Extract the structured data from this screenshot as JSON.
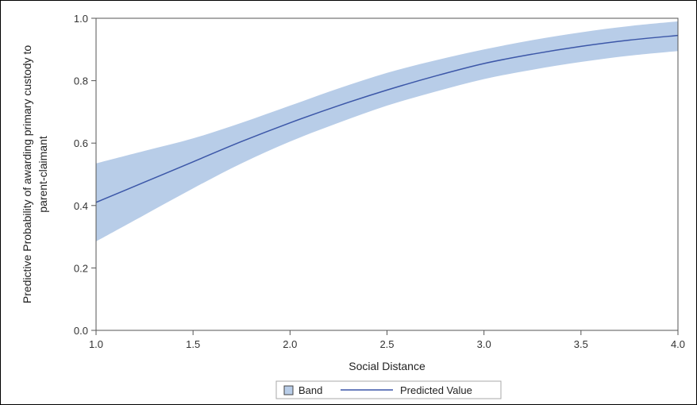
{
  "chart_data": {
    "type": "line",
    "xlabel": "Social Distance",
    "ylabel_lines": [
      "Predictive Probability of awarding primary custody to",
      "parent-claimant"
    ],
    "xlim": [
      1.0,
      4.0
    ],
    "ylim": [
      0.0,
      1.0
    ],
    "x_ticks": [
      "1.0",
      "1.5",
      "2.0",
      "2.5",
      "3.0",
      "3.5",
      "4.0"
    ],
    "y_ticks": [
      "0.0",
      "0.2",
      "0.4",
      "0.6",
      "0.8",
      "1.0"
    ],
    "grid": false,
    "legend_position": "bottom-center",
    "legend": {
      "band_label": "Band",
      "line_label": "Predicted Value"
    },
    "x": [
      1.0,
      1.25,
      1.5,
      1.75,
      2.0,
      2.25,
      2.5,
      2.75,
      3.0,
      3.25,
      3.5,
      3.75,
      4.0
    ],
    "series": [
      {
        "name": "Predicted Value",
        "values": [
          0.41,
          0.475,
          0.54,
          0.605,
          0.665,
          0.72,
          0.77,
          0.815,
          0.855,
          0.885,
          0.91,
          0.93,
          0.945
        ]
      },
      {
        "name": "Band",
        "lower": [
          0.285,
          0.37,
          0.455,
          0.535,
          0.605,
          0.665,
          0.72,
          0.765,
          0.805,
          0.835,
          0.86,
          0.88,
          0.895
        ],
        "upper": [
          0.535,
          0.575,
          0.615,
          0.665,
          0.72,
          0.775,
          0.825,
          0.865,
          0.9,
          0.93,
          0.955,
          0.975,
          0.99
        ]
      }
    ],
    "colors": {
      "band": "#b8cde8",
      "line": "#3c57a8",
      "legend_band_border": "#444444",
      "axis": "#555555"
    }
  }
}
